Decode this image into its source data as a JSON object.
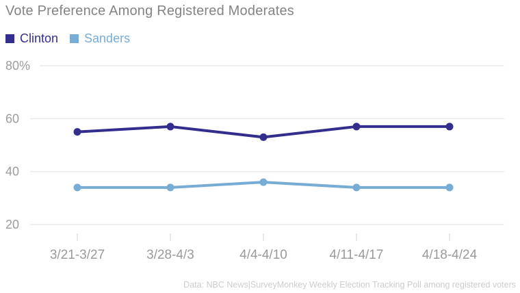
{
  "chart_data": {
    "type": "line",
    "title": "Vote Preference Among Registered Moderates",
    "categories": [
      "3/21-3/27",
      "3/28-4/3",
      "4/4-4/10",
      "4/11-4/17",
      "4/18-4/24"
    ],
    "series": [
      {
        "name": "Clinton",
        "color": "#332E8D",
        "values": [
          55,
          57,
          53,
          57,
          57
        ]
      },
      {
        "name": "Sanders",
        "color": "#77ACD4",
        "values": [
          34,
          34,
          36,
          34,
          34
        ]
      }
    ],
    "xlabel": "",
    "ylabel": "",
    "ylim": [
      20,
      80
    ],
    "yticks": {
      "values": [
        80,
        60,
        40,
        20
      ],
      "labels": [
        "80%",
        "60",
        "40",
        "20"
      ]
    },
    "grid": "horizontal",
    "legend_position": "top-left",
    "source_note": "Data: NBC News|SurveyMonkey Weekly Election Tracking Poll among registered voters"
  }
}
